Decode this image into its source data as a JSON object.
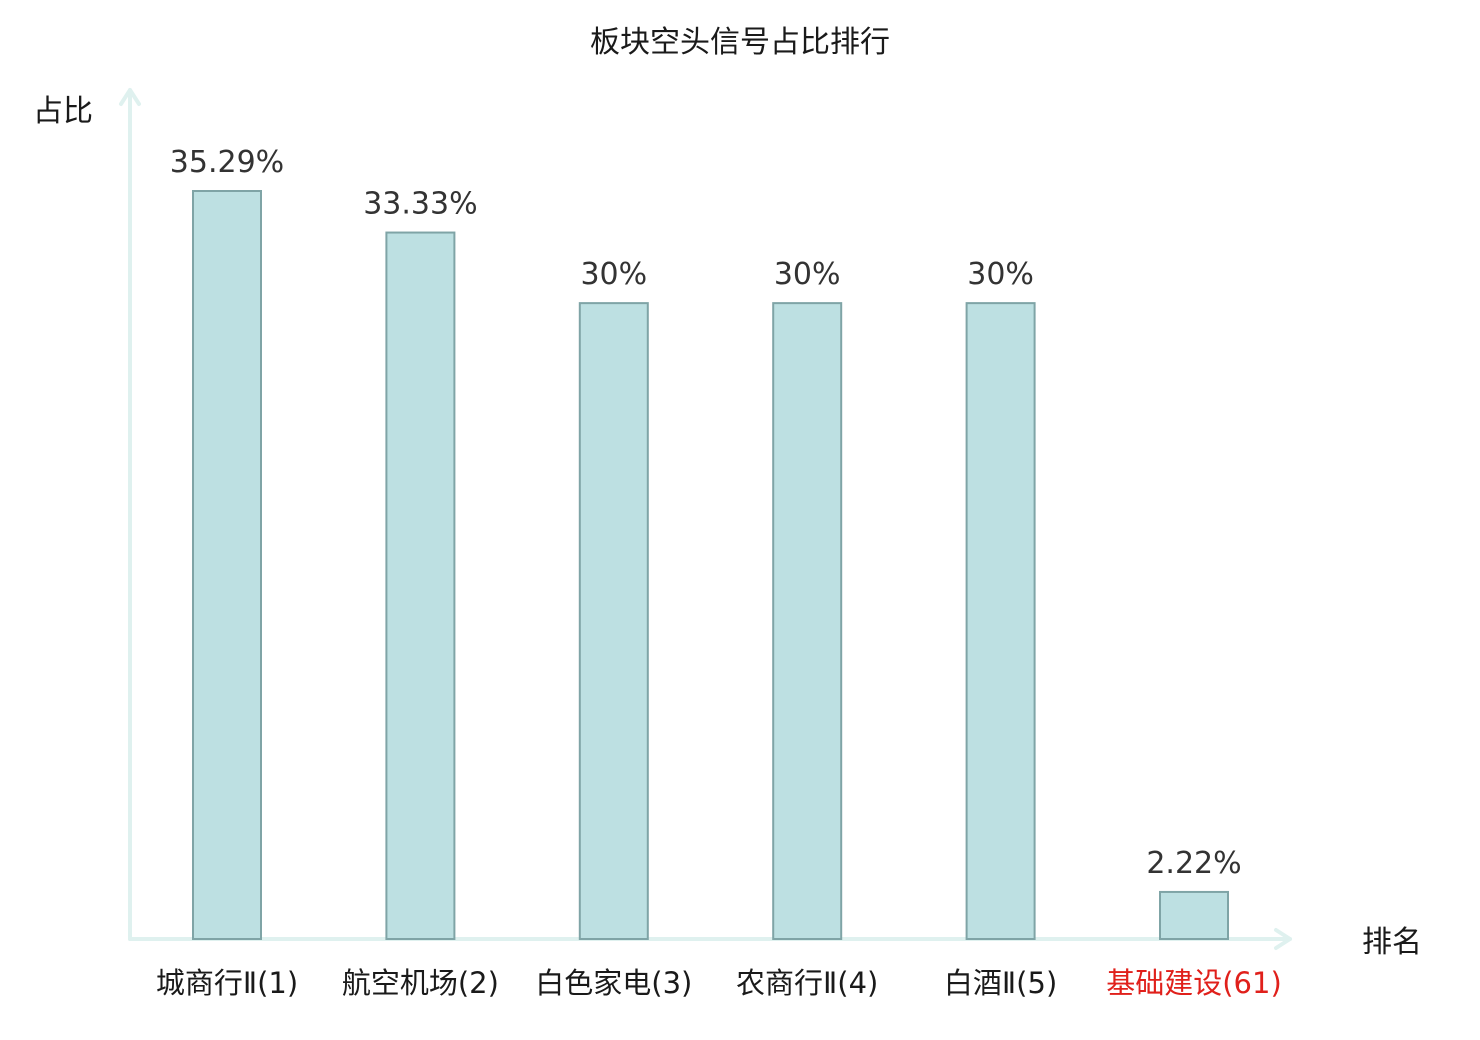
{
  "chart_data": {
    "type": "bar",
    "title": "板块空头信号占比排行",
    "xlabel": "排名",
    "ylabel": "占比",
    "categories": [
      "城商行Ⅱ(1)",
      "航空机场(2)",
      "白色家电(3)",
      "农商行Ⅱ(4)",
      "白酒Ⅱ(5)",
      "基础建设(61)"
    ],
    "values": [
      35.29,
      33.33,
      30,
      30,
      30,
      2.22
    ],
    "value_labels": [
      "35.29%",
      "33.33%",
      "30%",
      "30%",
      "30%",
      "2.22%"
    ],
    "highlight_index": 5,
    "ylim": [
      0,
      35.29
    ],
    "grid": false,
    "legend": "none"
  },
  "colors": {
    "bar_fill": "#bde0e2",
    "bar_stroke": "#7fa4a6",
    "axis": "#dff1ef",
    "highlight_label": "#e0201b"
  }
}
